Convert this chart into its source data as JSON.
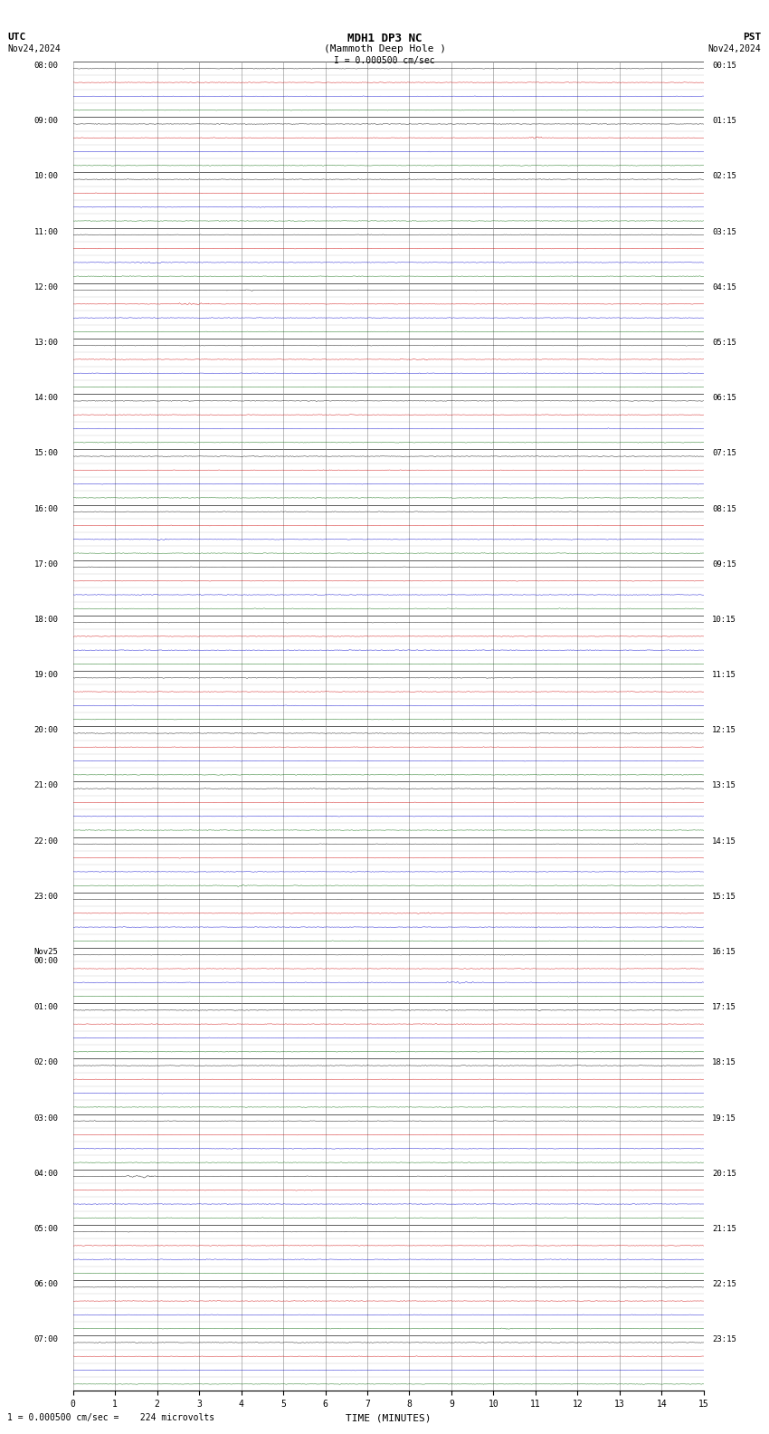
{
  "title_line1": "MDH1 DP3 NC",
  "title_line2": "(Mammoth Deep Hole )",
  "scale_label": "I = 0.000500 cm/sec",
  "utc_label": "UTC",
  "utc_date": "Nov24,2024",
  "pst_label": "PST",
  "pst_date": "Nov24,2024",
  "bottom_note": "1 = 0.000500 cm/sec =    224 microvolts",
  "utc_times": [
    "08:00",
    "",
    "",
    "",
    "09:00",
    "",
    "",
    "",
    "10:00",
    "",
    "",
    "",
    "11:00",
    "",
    "",
    "",
    "12:00",
    "",
    "",
    "",
    "13:00",
    "",
    "",
    "",
    "14:00",
    "",
    "",
    "",
    "15:00",
    "",
    "",
    "",
    "16:00",
    "",
    "",
    "",
    "17:00",
    "",
    "",
    "",
    "18:00",
    "",
    "",
    "",
    "19:00",
    "",
    "",
    "",
    "20:00",
    "",
    "",
    "",
    "21:00",
    "",
    "",
    "",
    "22:00",
    "",
    "",
    "",
    "23:00",
    "",
    "",
    "",
    "Nov25\n00:00",
    "",
    "",
    "",
    "01:00",
    "",
    "",
    "",
    "02:00",
    "",
    "",
    "",
    "03:00",
    "",
    "",
    "",
    "04:00",
    "",
    "",
    "",
    "05:00",
    "",
    "",
    "",
    "06:00",
    "",
    "",
    "",
    "07:00",
    "",
    "",
    ""
  ],
  "pst_times": [
    "00:15",
    "",
    "",
    "",
    "01:15",
    "",
    "",
    "",
    "02:15",
    "",
    "",
    "",
    "03:15",
    "",
    "",
    "",
    "04:15",
    "",
    "",
    "",
    "05:15",
    "",
    "",
    "",
    "06:15",
    "",
    "",
    "",
    "07:15",
    "",
    "",
    "",
    "08:15",
    "",
    "",
    "",
    "09:15",
    "",
    "",
    "",
    "10:15",
    "",
    "",
    "",
    "11:15",
    "",
    "",
    "",
    "12:15",
    "",
    "",
    "",
    "13:15",
    "",
    "",
    "",
    "14:15",
    "",
    "",
    "",
    "15:15",
    "",
    "",
    "",
    "16:15",
    "",
    "",
    "",
    "17:15",
    "",
    "",
    "",
    "18:15",
    "",
    "",
    "",
    "19:15",
    "",
    "",
    "",
    "20:15",
    "",
    "",
    "",
    "21:15",
    "",
    "",
    "",
    "22:15",
    "",
    "",
    "",
    "23:15",
    "",
    "",
    ""
  ],
  "n_rows": 96,
  "n_cols_minutes": 15,
  "trace_colors": [
    "#000000",
    "#cc0000",
    "#0000cc",
    "#006600"
  ],
  "bg_color": "#ffffff",
  "xmin": 0,
  "xmax": 15,
  "xlabel": "TIME (MINUTES)"
}
